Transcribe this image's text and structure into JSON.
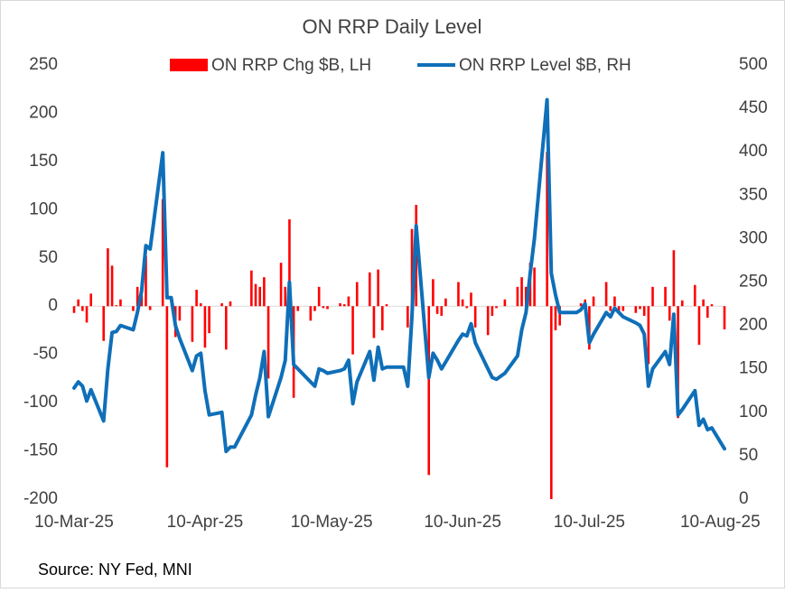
{
  "chart_data": {
    "type": "bar-line",
    "title": "ON RRP Daily Level",
    "source": "Source: NY Fed, MNI",
    "x": [
      "2025-03-10",
      "2025-03-11",
      "2025-03-12",
      "2025-03-13",
      "2025-03-14",
      "2025-03-17",
      "2025-03-18",
      "2025-03-19",
      "2025-03-20",
      "2025-03-21",
      "2025-03-24",
      "2025-03-25",
      "2025-03-26",
      "2025-03-27",
      "2025-03-28",
      "2025-03-31",
      "2025-04-01",
      "2025-04-02",
      "2025-04-03",
      "2025-04-04",
      "2025-04-07",
      "2025-04-08",
      "2025-04-09",
      "2025-04-10",
      "2025-04-11",
      "2025-04-14",
      "2025-04-15",
      "2025-04-16",
      "2025-04-17",
      "2025-04-21",
      "2025-04-22",
      "2025-04-23",
      "2025-04-24",
      "2025-04-25",
      "2025-04-28",
      "2025-04-29",
      "2025-04-30",
      "2025-05-01",
      "2025-05-02",
      "2025-05-05",
      "2025-05-06",
      "2025-05-07",
      "2025-05-08",
      "2025-05-09",
      "2025-05-12",
      "2025-05-13",
      "2025-05-14",
      "2025-05-15",
      "2025-05-16",
      "2025-05-19",
      "2025-05-20",
      "2025-05-21",
      "2025-05-22",
      "2025-05-23",
      "2025-05-27",
      "2025-05-28",
      "2025-05-29",
      "2025-05-30",
      "2025-06-02",
      "2025-06-03",
      "2025-06-04",
      "2025-06-05",
      "2025-06-06",
      "2025-06-09",
      "2025-06-10",
      "2025-06-11",
      "2025-06-12",
      "2025-06-13",
      "2025-06-16",
      "2025-06-17",
      "2025-06-18",
      "2025-06-20",
      "2025-06-23",
      "2025-06-24",
      "2025-06-25",
      "2025-06-26",
      "2025-06-27",
      "2025-06-30",
      "2025-07-01",
      "2025-07-02",
      "2025-07-03",
      "2025-07-07",
      "2025-07-08",
      "2025-07-09",
      "2025-07-10",
      "2025-07-11",
      "2025-07-14",
      "2025-07-15",
      "2025-07-16",
      "2025-07-17",
      "2025-07-18",
      "2025-07-21",
      "2025-07-22",
      "2025-07-23",
      "2025-07-24",
      "2025-07-25",
      "2025-07-28",
      "2025-07-29",
      "2025-07-30",
      "2025-07-31",
      "2025-08-01",
      "2025-08-04",
      "2025-08-05",
      "2025-08-06",
      "2025-08-07",
      "2025-08-08",
      "2025-08-11"
    ],
    "series": [
      {
        "name": "ON RRP Chg $B, LH",
        "type": "bar",
        "color": "#ff0000",
        "values": [
          -7,
          7,
          -5,
          -17,
          13,
          -36,
          60,
          42,
          1,
          7,
          -5,
          20,
          25,
          52,
          -4,
          111,
          -167,
          0,
          -32,
          -15,
          -37,
          17,
          3,
          -43,
          -28,
          3,
          -45,
          5,
          0,
          37,
          23,
          20,
          30,
          -75,
          45,
          20,
          90,
          -95,
          -5,
          -15,
          -5,
          20,
          -2,
          -3,
          3,
          2,
          10,
          -50,
          25,
          35,
          -33,
          38,
          -25,
          2,
          0,
          -22,
          80,
          105,
          -175,
          28,
          -8,
          -10,
          8,
          25,
          7,
          -2,
          14,
          -22,
          -30,
          -10,
          -2,
          7,
          20,
          30,
          20,
          45,
          40,
          160,
          -200,
          -25,
          -20,
          0,
          3,
          7,
          -45,
          10,
          25,
          -5,
          10,
          -5,
          -5,
          -7,
          -3,
          -10,
          -60,
          20,
          20,
          -15,
          58,
          -116,
          6,
          22,
          -40,
          7,
          -12,
          2,
          -24
        ]
      },
      {
        "name": "ON RRP Level $B, RH",
        "type": "line",
        "axis": "y2",
        "color": "#0f6fb8",
        "values": [
          128,
          135,
          130,
          113,
          126,
          90,
          150,
          192,
          193,
          200,
          195,
          215,
          240,
          292,
          288,
          399,
          232,
          232,
          200,
          185,
          148,
          165,
          168,
          125,
          97,
          100,
          55,
          60,
          60,
          97,
          120,
          140,
          170,
          95,
          140,
          160,
          250,
          155,
          150,
          135,
          130,
          150,
          148,
          145,
          148,
          150,
          160,
          110,
          135,
          170,
          137,
          175,
          150,
          152,
          152,
          130,
          210,
          315,
          140,
          168,
          160,
          150,
          158,
          183,
          190,
          188,
          202,
          180,
          150,
          140,
          138,
          145,
          165,
          195,
          215,
          260,
          300,
          460,
          260,
          235,
          215,
          215,
          218,
          225,
          180,
          190,
          215,
          210,
          220,
          215,
          210,
          203,
          200,
          190,
          130,
          150,
          170,
          155,
          213,
          97,
          103,
          125,
          85,
          92,
          80,
          82,
          58
        ]
      }
    ],
    "xlim": [
      "2025-03-10",
      "2025-08-11"
    ],
    "xticks": [
      {
        "value": "2025-03-10",
        "label": "10-Mar-25"
      },
      {
        "value": "2025-04-10",
        "label": "10-Apr-25"
      },
      {
        "value": "2025-05-10",
        "label": "10-May-25"
      },
      {
        "value": "2025-06-10",
        "label": "10-Jun-25"
      },
      {
        "value": "2025-07-10",
        "label": "10-Jul-25"
      },
      {
        "value": "2025-08-10",
        "label": "10-Aug-25"
      }
    ],
    "ylim": [
      -200,
      250
    ],
    "yticks": [
      -200,
      -150,
      -100,
      -50,
      0,
      50,
      100,
      150,
      200,
      250
    ],
    "y2lim": [
      0,
      500
    ],
    "y2ticks": [
      0,
      50,
      100,
      150,
      200,
      250,
      300,
      350,
      400,
      450,
      500
    ],
    "grid": false
  }
}
